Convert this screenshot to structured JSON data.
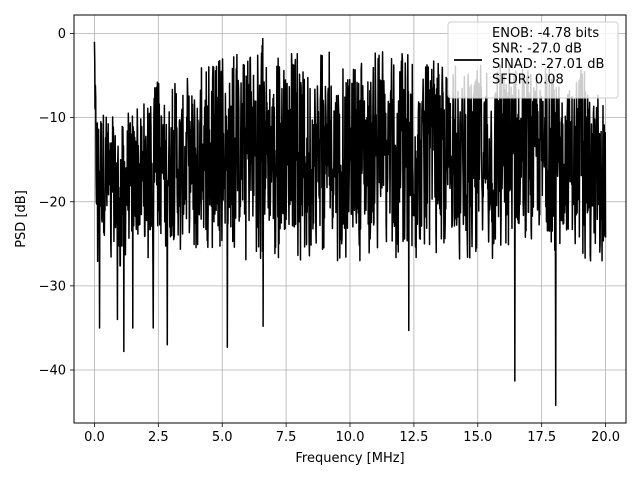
{
  "chart_data": {
    "type": "line",
    "title": "",
    "xlabel": "Frequency [MHz]",
    "ylabel": "PSD [dB]",
    "xlim": [
      -0.8,
      20.8
    ],
    "ylim": [
      -46.3,
      2.2
    ],
    "xticks": [
      0.0,
      2.5,
      5.0,
      7.5,
      10.0,
      12.5,
      15.0,
      17.5,
      20.0
    ],
    "xtick_labels": [
      "0.0",
      "2.5",
      "5.0",
      "7.5",
      "10.0",
      "12.5",
      "15.0",
      "17.5",
      "20.0"
    ],
    "yticks": [
      0,
      -10,
      -20,
      -30,
      -40
    ],
    "ytick_labels": [
      "0",
      "−10",
      "−20",
      "−30",
      "−40"
    ],
    "grid": true,
    "legend_position": "upper-right",
    "series": [
      {
        "name": "ENOB: -4.78 bits\nSNR: -27.0 dB\nSINAD: -27.01 dB\nSFDR: 0.08",
        "color": "#000000",
        "x_range": [
          0.0,
          20.0
        ],
        "upper_envelope_x": [
          0.0,
          0.05,
          0.15,
          0.3,
          0.5,
          1.0,
          2.0,
          2.5,
          3.0,
          3.5,
          4.0,
          5.0,
          6.0,
          6.7,
          7.0,
          8.0,
          9.0,
          10.0,
          11.0,
          12.0,
          13.0,
          14.0,
          15.0,
          16.0,
          17.0,
          18.0,
          19.0,
          20.0
        ],
        "upper_envelope_y": [
          -1.0,
          -2.5,
          -7.5,
          -6.0,
          -9.5,
          -9.0,
          -8.0,
          -5.5,
          -6.0,
          -5.0,
          -4.0,
          -3.0,
          -2.0,
          0.0,
          -3.0,
          -2.0,
          -2.0,
          -3.0,
          -2.0,
          -2.0,
          -3.0,
          -4.0,
          -3.0,
          -3.0,
          -4.0,
          -4.0,
          -4.0,
          -7.0
        ],
        "lower_envelope_x": [
          0.0,
          0.1,
          0.2,
          0.5,
          1.0,
          2.0,
          3.0,
          4.0,
          5.0,
          6.0,
          7.0,
          8.0,
          9.0,
          10.0,
          11.0,
          12.0,
          13.0,
          14.0,
          15.0,
          16.0,
          17.0,
          18.0,
          19.0,
          20.0
        ],
        "lower_envelope_y": [
          -20.5,
          -29.0,
          -27.0,
          -27.0,
          -28.0,
          -27.0,
          -28.0,
          -27.0,
          -27.0,
          -27.0,
          -27.0,
          -27.0,
          -27.0,
          -27.0,
          -27.0,
          -27.0,
          -27.0,
          -27.0,
          -27.0,
          -27.0,
          -27.0,
          -27.0,
          -27.0,
          -28.0
        ],
        "notable_minima": [
          {
            "x": 0.2,
            "y": -35.0
          },
          {
            "x": 0.9,
            "y": -34.0
          },
          {
            "x": 1.15,
            "y": -37.8
          },
          {
            "x": 1.5,
            "y": -35.0
          },
          {
            "x": 2.3,
            "y": -35.0
          },
          {
            "x": 2.85,
            "y": -37.0
          },
          {
            "x": 5.2,
            "y": -37.3
          },
          {
            "x": 6.6,
            "y": -34.8
          },
          {
            "x": 12.3,
            "y": -35.3
          },
          {
            "x": 16.45,
            "y": -41.3
          },
          {
            "x": 18.05,
            "y": -44.2
          }
        ]
      }
    ]
  }
}
